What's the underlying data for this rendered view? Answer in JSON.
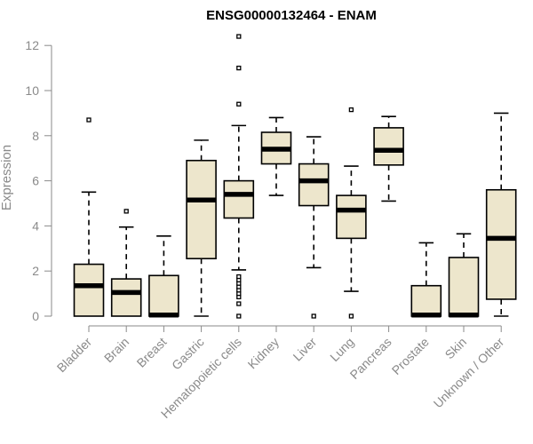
{
  "chart_data": {
    "type": "box",
    "title": "ENSG00000132464 - ENAM",
    "xlabel": "",
    "ylabel": "Expression",
    "ylim": [
      0,
      12.2
    ],
    "yticks": [
      "0",
      "2",
      "4",
      "6",
      "8",
      "10",
      "12"
    ],
    "box_fill": "#ede6cc",
    "categories": [
      "Bladder",
      "Brain",
      "Breast",
      "Gastric",
      "Hematopoietic cells",
      "Kidney",
      "Liver",
      "Lung",
      "Pancreas",
      "Prostate",
      "Skin",
      "Unknown / Other"
    ],
    "boxes": [
      {
        "low": 0,
        "q1": 0,
        "median": 1.35,
        "q3": 2.3,
        "high": 5.5,
        "outliers": [
          8.7
        ]
      },
      {
        "low": 0,
        "q1": 0,
        "median": 1.05,
        "q3": 1.65,
        "high": 3.95,
        "outliers": [
          4.65
        ]
      },
      {
        "low": 0,
        "q1": 0,
        "median": 0.05,
        "q3": 1.8,
        "high": 3.55,
        "outliers": []
      },
      {
        "low": 0,
        "q1": 2.55,
        "median": 5.15,
        "q3": 6.9,
        "high": 7.8,
        "outliers": []
      },
      {
        "low": 2.05,
        "q1": 4.35,
        "median": 5.4,
        "q3": 6.0,
        "high": 8.45,
        "outliers": [
          0,
          0.55,
          0.85,
          1.0,
          1.15,
          1.3,
          1.45,
          1.6,
          1.75,
          9.4,
          11.0,
          12.4
        ]
      },
      {
        "low": 5.35,
        "q1": 6.75,
        "median": 7.4,
        "q3": 8.15,
        "high": 8.8,
        "outliers": []
      },
      {
        "low": 2.15,
        "q1": 4.9,
        "median": 6.0,
        "q3": 6.75,
        "high": 7.95,
        "outliers": [
          0
        ]
      },
      {
        "low": 1.1,
        "q1": 3.45,
        "median": 4.7,
        "q3": 5.35,
        "high": 6.65,
        "outliers": [
          0,
          9.15
        ]
      },
      {
        "low": 5.1,
        "q1": 6.7,
        "median": 7.35,
        "q3": 8.35,
        "high": 8.85,
        "outliers": []
      },
      {
        "low": 0,
        "q1": 0,
        "median": 0.05,
        "q3": 1.35,
        "high": 3.25,
        "outliers": []
      },
      {
        "low": 0,
        "q1": 0,
        "median": 0.05,
        "q3": 2.6,
        "high": 3.65,
        "outliers": []
      },
      {
        "low": 0,
        "q1": 0.75,
        "median": 3.45,
        "q3": 5.6,
        "high": 9.0,
        "outliers": []
      }
    ]
  }
}
